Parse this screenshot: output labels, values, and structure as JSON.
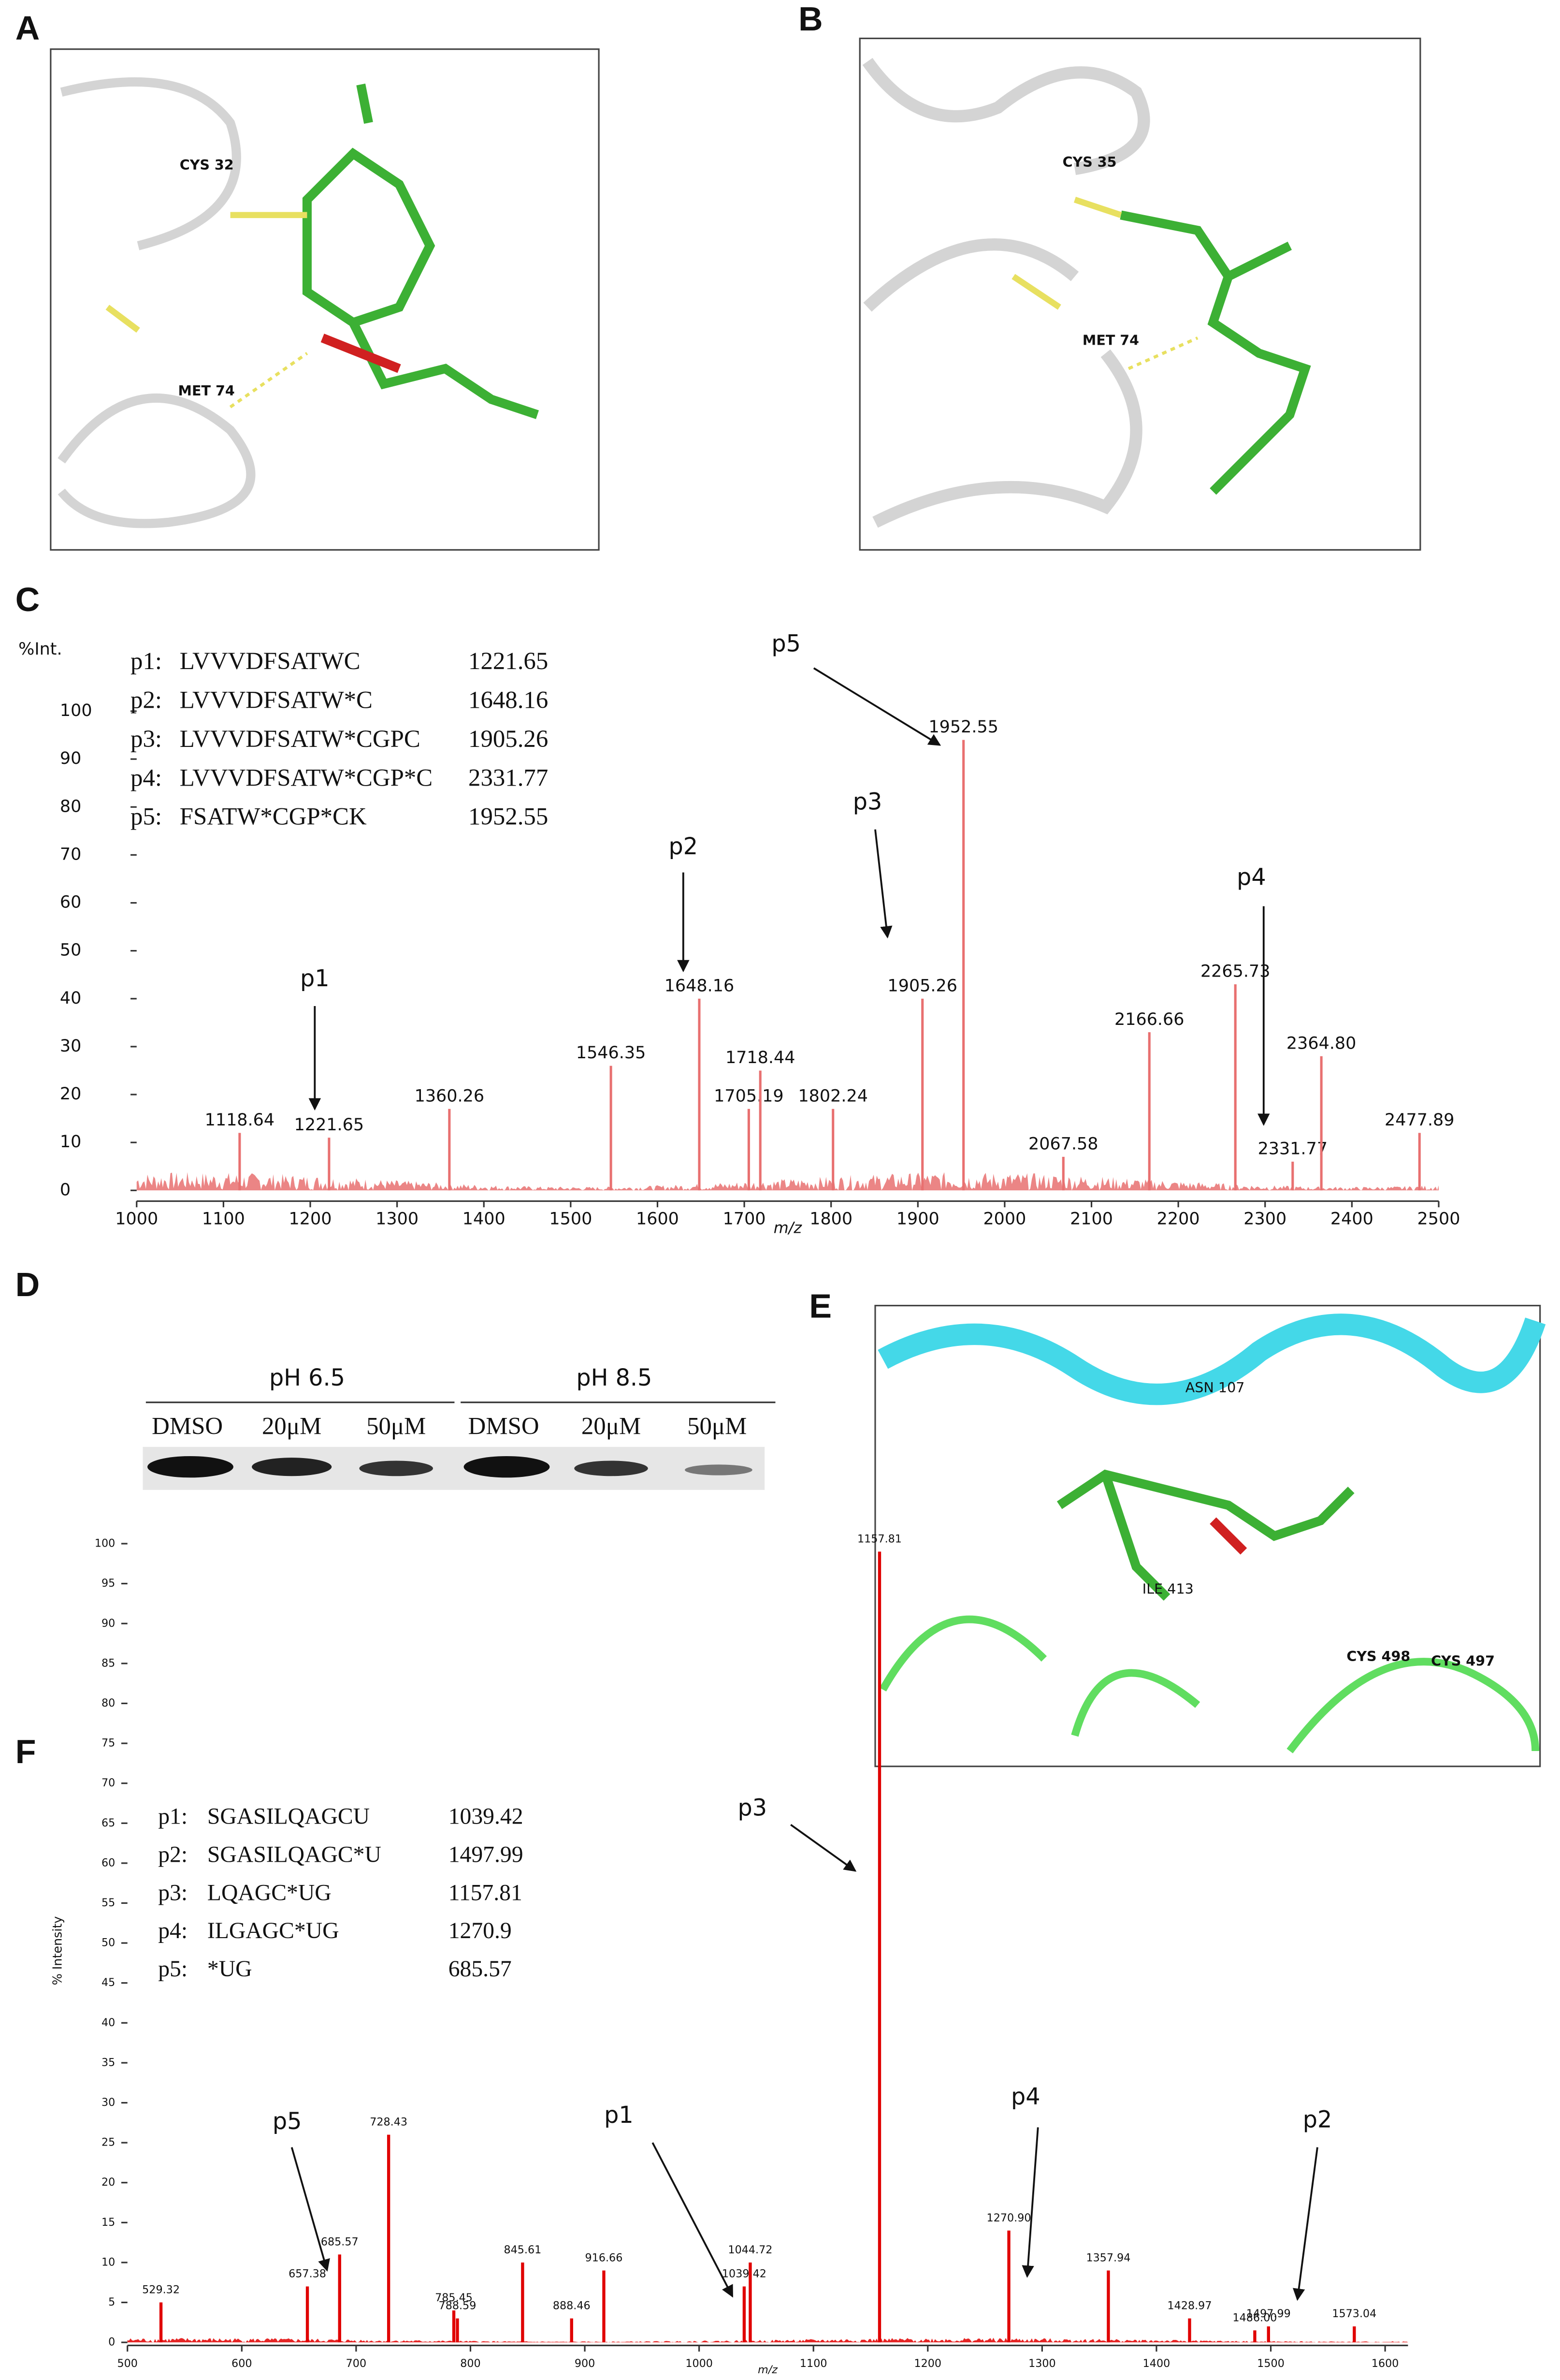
{
  "panel_labels": [
    "A",
    "B",
    "C",
    "D",
    "E",
    "F"
  ],
  "structure_labels": {
    "A": [
      "CYS 32",
      "MET 74"
    ],
    "B": [
      "CYS 35",
      "MET 74"
    ],
    "E": [
      "ASN 107",
      "ILE 413",
      "CYS 498",
      "CYS 497"
    ]
  },
  "gel": {
    "groups": [
      "pH 6.5",
      "pH 8.5"
    ],
    "lanes": [
      "DMSO",
      "20μM",
      "50μM",
      "DMSO",
      "20μM",
      "50μM"
    ]
  },
  "chart_data": [
    {
      "type": "stem",
      "y_label": "%Int.",
      "x_label": "m/z",
      "color": "#e87070",
      "x": [
        1118.64,
        1221.65,
        1360.26,
        1546.35,
        1648.16,
        1705.19,
        1718.44,
        1802.24,
        1905.26,
        1952.55,
        2067.58,
        2166.66,
        2265.73,
        2331.77,
        2364.8,
        2477.89
      ],
      "x_labels": [
        "1118.64",
        "1221.65",
        "1360.26",
        "1546.35",
        "1648.16",
        "1705.19",
        "1718.44",
        "1802.24",
        "1905.26",
        "1952.55",
        "2067.58",
        "2166.66",
        "2265.73",
        "2331.77",
        "2364.80",
        "2477.89"
      ],
      "values": [
        12,
        11,
        17,
        26,
        40,
        17,
        25,
        17,
        40,
        94,
        7,
        33,
        43,
        6,
        28,
        12
      ],
      "xlim": [
        1000,
        2500
      ],
      "xticks": [
        1000,
        1100,
        1200,
        1300,
        1400,
        1500,
        1600,
        1700,
        1800,
        1900,
        2000,
        2100,
        2200,
        2300,
        2400,
        2500
      ],
      "ylim": [
        0,
        100
      ],
      "yticks": [
        0,
        10,
        20,
        30,
        40,
        50,
        60,
        70,
        80,
        90,
        100
      ],
      "legend": [
        {
          "name": "p1:",
          "sequence": "LVVVDFSATWC",
          "mass": "1221.65"
        },
        {
          "name": "p2:",
          "sequence": "LVVVDFSATW*C",
          "mass": "1648.16"
        },
        {
          "name": "p3:",
          "sequence": "LVVVDFSATW*CGPC",
          "mass": "1905.26"
        },
        {
          "name": "p4:",
          "sequence": "LVVVDFSATW*CGP*C",
          "mass": "2331.77"
        },
        {
          "name": "p5:",
          "sequence": "FSATW*CGP*CK",
          "mass": "1952.55"
        }
      ],
      "annotations": [
        "p1",
        "p2",
        "p3",
        "p4",
        "p5"
      ]
    },
    {
      "type": "stem",
      "y_label": "% Intensity",
      "x_label": "m/z",
      "color": "#e00000",
      "x": [
        529.32,
        657.38,
        685.57,
        728.43,
        785.45,
        788.59,
        845.61,
        888.46,
        916.66,
        1039.42,
        1044.72,
        1157.81,
        1270.9,
        1357.94,
        1428.97,
        1486.0,
        1497.99,
        1573.04
      ],
      "x_labels": [
        "529.32",
        "657.38",
        "685.57",
        "728.43",
        "785.45",
        "788.59",
        "845.61",
        "888.46",
        "916.66",
        "1039.42",
        "1044.72",
        "1157.81",
        "1270.90",
        "1357.94",
        "1428.97",
        "1486.00",
        "1497.99",
        "1573.04"
      ],
      "values": [
        5,
        7,
        11,
        26,
        4,
        3,
        10,
        3,
        9,
        7,
        10,
        99,
        14,
        9,
        3,
        1.5,
        2,
        2
      ],
      "xlim": [
        500,
        1620
      ],
      "xticks": [
        500,
        600,
        700,
        800,
        900,
        1000,
        1100,
        1200,
        1300,
        1400,
        1500,
        1600
      ],
      "ylim": [
        0,
        100
      ],
      "yticks": [
        0,
        5,
        10,
        15,
        20,
        25,
        30,
        35,
        40,
        45,
        50,
        55,
        60,
        65,
        70,
        75,
        80,
        85,
        90,
        95,
        100
      ],
      "legend": [
        {
          "name": "p1:",
          "sequence": "SGASILQAGCU",
          "mass": "1039.42"
        },
        {
          "name": "p2:",
          "sequence": "SGASILQAGC*U",
          "mass": "1497.99"
        },
        {
          "name": "p3:",
          "sequence": "LQAGC*UG",
          "mass": "1157.81"
        },
        {
          "name": "p4:",
          "sequence": "ILGAGC*UG",
          "mass": "1270.9"
        },
        {
          "name": "p5:",
          "sequence": "*UG",
          "mass": "685.57"
        }
      ],
      "annotations": [
        "p3",
        "p5",
        "p1",
        "p4",
        "p2"
      ]
    }
  ]
}
